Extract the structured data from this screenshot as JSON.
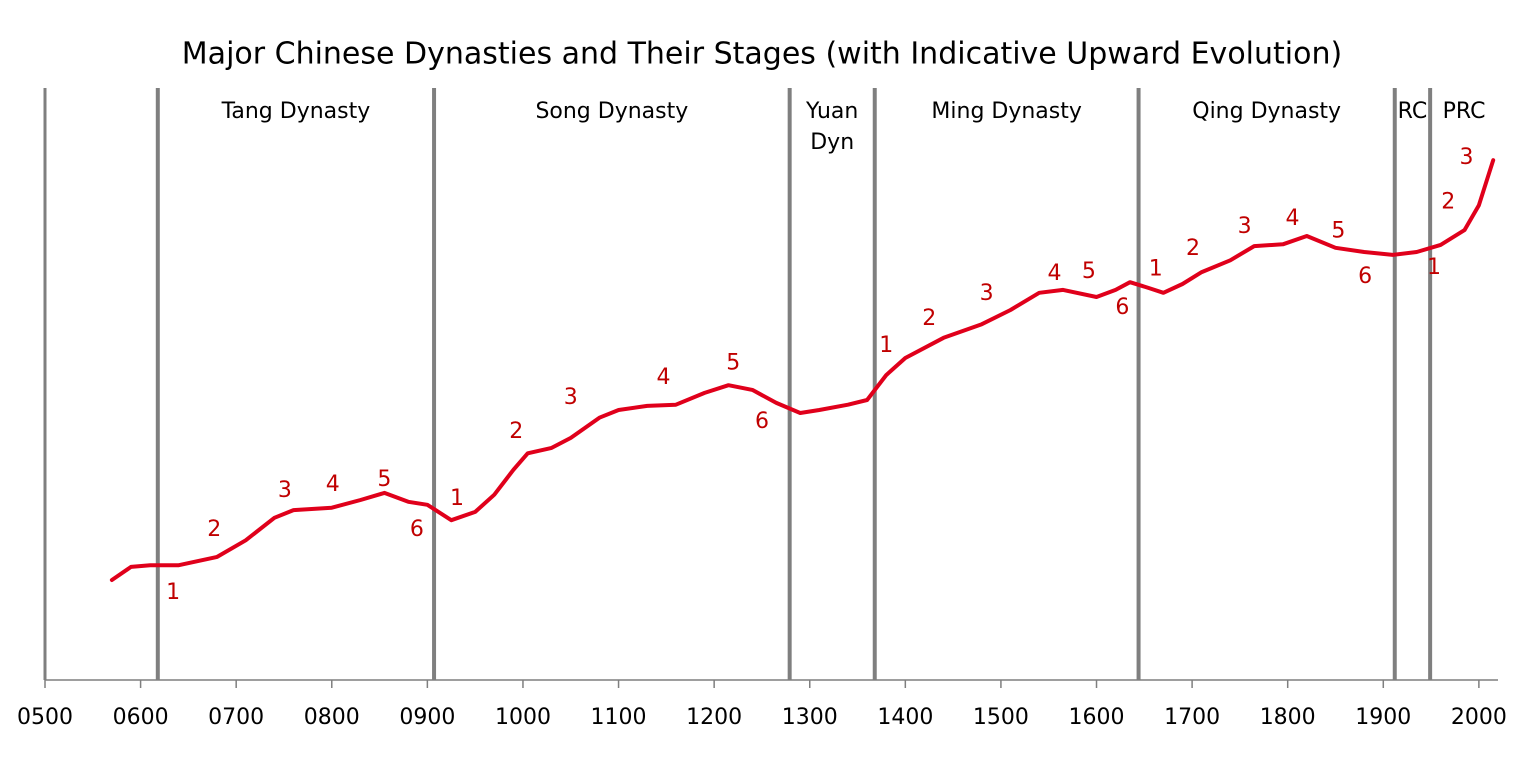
{
  "chart_data": {
    "type": "line",
    "title": "Major Chinese Dynasties and Their Stages (with Indicative Upward Evolution)",
    "xlim": [
      500,
      2020
    ],
    "ylim": [
      0,
      100
    ],
    "xticks": [
      {
        "value": 500,
        "label": "0500"
      },
      {
        "value": 600,
        "label": "0600"
      },
      {
        "value": 700,
        "label": "0700"
      },
      {
        "value": 800,
        "label": "0800"
      },
      {
        "value": 900,
        "label": "0900"
      },
      1000,
      1100,
      1200,
      1300,
      1400,
      1500,
      1600,
      1700,
      1800,
      1900,
      2000
    ],
    "color": "#e0001b",
    "x": [
      570,
      590,
      610,
      640,
      680,
      710,
      740,
      760,
      800,
      830,
      855,
      880,
      900,
      925,
      950,
      970,
      990,
      1005,
      1030,
      1050,
      1080,
      1100,
      1130,
      1160,
      1190,
      1215,
      1240,
      1265,
      1290,
      1310,
      1340,
      1360,
      1380,
      1400,
      1440,
      1480,
      1510,
      1540,
      1565,
      1600,
      1620,
      1635,
      1655,
      1670,
      1690,
      1710,
      1740,
      1765,
      1795,
      1820,
      1850,
      1880,
      1910,
      1935,
      1960,
      1985,
      2000,
      2015
    ],
    "values": [
      16.9,
      19.1,
      19.4,
      19.4,
      20.8,
      23.6,
      27.4,
      28.7,
      29.1,
      30.4,
      31.6,
      30.1,
      29.6,
      27.0,
      28.4,
      31.3,
      35.5,
      38.3,
      39.2,
      40.9,
      44.3,
      45.6,
      46.3,
      46.5,
      48.5,
      49.8,
      49.0,
      46.8,
      45.1,
      45.6,
      46.5,
      47.3,
      51.5,
      54.4,
      57.8,
      60.1,
      62.5,
      65.4,
      65.9,
      64.7,
      65.9,
      67.2,
      66.2,
      65.4,
      66.9,
      68.9,
      70.9,
      73.3,
      73.6,
      75.0,
      73.0,
      72.3,
      71.8,
      72.3,
      73.5,
      76.0,
      80.2,
      87.8
    ],
    "dynasties": [
      {
        "label": [
          "Tang Dynasty"
        ],
        "start": 618,
        "end": 907
      },
      {
        "label": [
          "Song Dynasty"
        ],
        "start": 907,
        "end": 1279
      },
      {
        "label": [
          "Yuan",
          "Dyn"
        ],
        "start": 1279,
        "end": 1368
      },
      {
        "label": [
          "Ming Dynasty"
        ],
        "start": 1368,
        "end": 1644
      },
      {
        "label": [
          "Qing Dynasty"
        ],
        "start": 1644,
        "end": 1912
      },
      {
        "label": [
          "RC"
        ],
        "start": 1912,
        "end": 1949
      },
      {
        "label": [
          "PRC"
        ],
        "start": 1949,
        "end": 2020
      }
    ],
    "annotations": [
      {
        "text": "1",
        "x": 634,
        "y": 14.7
      },
      {
        "text": "2",
        "x": 677,
        "y": 25.3
      },
      {
        "text": "3",
        "x": 751,
        "y": 31.9
      },
      {
        "text": "4",
        "x": 801,
        "y": 32.9
      },
      {
        "text": "5",
        "x": 855,
        "y": 33.8
      },
      {
        "text": "6",
        "x": 889,
        "y": 25.3
      },
      {
        "text": "1",
        "x": 931,
        "y": 30.6
      },
      {
        "text": "2",
        "x": 993,
        "y": 41.9
      },
      {
        "text": "3",
        "x": 1050,
        "y": 47.6
      },
      {
        "text": "4",
        "x": 1147,
        "y": 51.0
      },
      {
        "text": "5",
        "x": 1220,
        "y": 53.5
      },
      {
        "text": "6",
        "x": 1250,
        "y": 43.6
      },
      {
        "text": "1",
        "x": 1380,
        "y": 56.4
      },
      {
        "text": "2",
        "x": 1425,
        "y": 61.0
      },
      {
        "text": "3",
        "x": 1485,
        "y": 65.2
      },
      {
        "text": "4",
        "x": 1556,
        "y": 68.6
      },
      {
        "text": "5",
        "x": 1592,
        "y": 68.9
      },
      {
        "text": "6",
        "x": 1627,
        "y": 62.8
      },
      {
        "text": "1",
        "x": 1662,
        "y": 69.3
      },
      {
        "text": "2",
        "x": 1701,
        "y": 72.8
      },
      {
        "text": "3",
        "x": 1755,
        "y": 76.5
      },
      {
        "text": "4",
        "x": 1805,
        "y": 77.9
      },
      {
        "text": "5",
        "x": 1853,
        "y": 75.8
      },
      {
        "text": "6",
        "x": 1881,
        "y": 68.1
      },
      {
        "text": "1",
        "x": 1953,
        "y": 69.6
      },
      {
        "text": "2",
        "x": 1968,
        "y": 80.7
      },
      {
        "text": "3",
        "x": 1987,
        "y": 88.2
      }
    ]
  }
}
